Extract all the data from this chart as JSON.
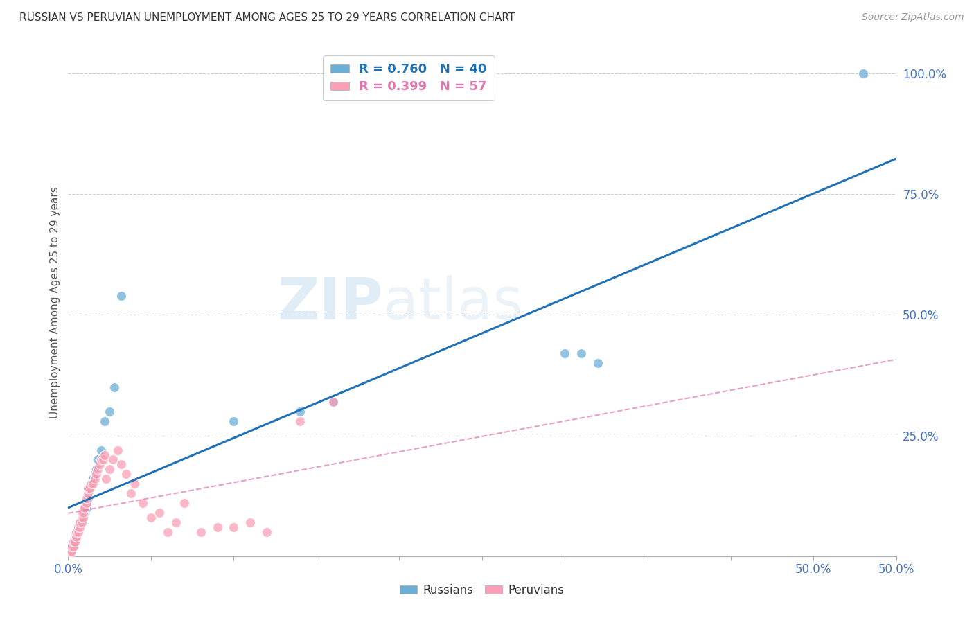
{
  "title": "RUSSIAN VS PERUVIAN UNEMPLOYMENT AMONG AGES 25 TO 29 YEARS CORRELATION CHART",
  "source": "Source: ZipAtlas.com",
  "ylabel": "Unemployment Among Ages 25 to 29 years",
  "xlim": [
    0.0,
    0.5
  ],
  "ylim": [
    0.0,
    1.05
  ],
  "xticks": [
    0.0,
    0.05,
    0.1,
    0.15,
    0.2,
    0.25,
    0.3,
    0.35,
    0.4,
    0.45,
    0.5
  ],
  "xtick_labels_show": {
    "0.0": "0.0%",
    "0.5": "50.0%"
  },
  "yticks_right": [
    0.0,
    0.25,
    0.5,
    0.75,
    1.0
  ],
  "ytick_labels_right": [
    "",
    "25.0%",
    "50.0%",
    "75.0%",
    "100.0%"
  ],
  "russian_color": "#6baed6",
  "peruvian_color": "#fa9fb5",
  "russian_line_color": "#2171b5",
  "peruvian_line_color": "#de77ae",
  "legend_label_blue": "Russians",
  "legend_label_pink": "Peruvians",
  "watermark_zip": "ZIP",
  "watermark_atlas": "atlas",
  "background_color": "#ffffff",
  "grid_color": "#cccccc",
  "russian_R": 0.76,
  "peruvian_R": 0.399,
  "russian_N": 40,
  "peruvian_N": 57,
  "russian_x": [
    0.001,
    0.002,
    0.002,
    0.003,
    0.003,
    0.004,
    0.004,
    0.005,
    0.005,
    0.006,
    0.006,
    0.007,
    0.007,
    0.008,
    0.008,
    0.009,
    0.009,
    0.01,
    0.01,
    0.011,
    0.011,
    0.012,
    0.013,
    0.014,
    0.015,
    0.016,
    0.017,
    0.018,
    0.02,
    0.022,
    0.025,
    0.028,
    0.032,
    0.1,
    0.14,
    0.16,
    0.3,
    0.31,
    0.32,
    0.48
  ],
  "russian_y": [
    0.01,
    0.01,
    0.02,
    0.02,
    0.03,
    0.03,
    0.04,
    0.04,
    0.05,
    0.05,
    0.06,
    0.06,
    0.07,
    0.07,
    0.08,
    0.08,
    0.09,
    0.09,
    0.1,
    0.1,
    0.11,
    0.12,
    0.14,
    0.15,
    0.16,
    0.17,
    0.18,
    0.2,
    0.22,
    0.28,
    0.3,
    0.35,
    0.54,
    0.28,
    0.3,
    0.32,
    0.42,
    0.42,
    0.4,
    1.0
  ],
  "peruvian_x": [
    0.001,
    0.001,
    0.002,
    0.002,
    0.003,
    0.003,
    0.004,
    0.004,
    0.005,
    0.005,
    0.005,
    0.006,
    0.006,
    0.007,
    0.007,
    0.008,
    0.008,
    0.008,
    0.009,
    0.009,
    0.01,
    0.01,
    0.011,
    0.011,
    0.012,
    0.012,
    0.013,
    0.014,
    0.015,
    0.016,
    0.017,
    0.018,
    0.019,
    0.02,
    0.021,
    0.022,
    0.023,
    0.025,
    0.027,
    0.03,
    0.032,
    0.035,
    0.038,
    0.04,
    0.045,
    0.05,
    0.055,
    0.06,
    0.065,
    0.07,
    0.08,
    0.09,
    0.1,
    0.11,
    0.12,
    0.14,
    0.16
  ],
  "peruvian_y": [
    0.0,
    0.01,
    0.01,
    0.02,
    0.02,
    0.03,
    0.03,
    0.03,
    0.04,
    0.04,
    0.05,
    0.05,
    0.06,
    0.06,
    0.07,
    0.07,
    0.08,
    0.09,
    0.08,
    0.09,
    0.1,
    0.1,
    0.11,
    0.12,
    0.13,
    0.14,
    0.14,
    0.15,
    0.15,
    0.16,
    0.17,
    0.18,
    0.19,
    0.2,
    0.2,
    0.21,
    0.16,
    0.18,
    0.2,
    0.22,
    0.19,
    0.17,
    0.13,
    0.15,
    0.11,
    0.08,
    0.09,
    0.05,
    0.07,
    0.11,
    0.05,
    0.06,
    0.06,
    0.07,
    0.05,
    0.28,
    0.32
  ]
}
